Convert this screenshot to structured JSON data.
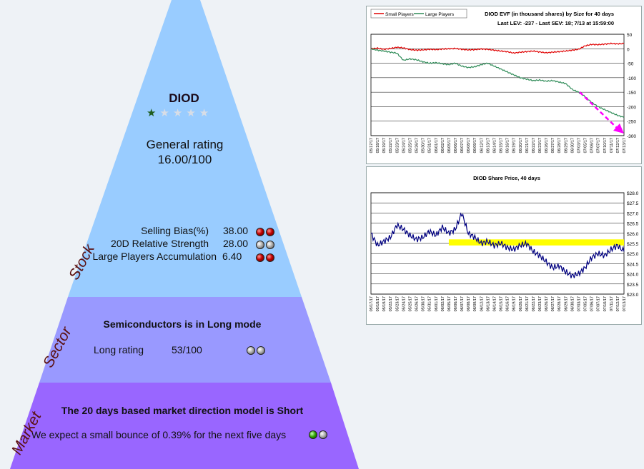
{
  "stock": {
    "ticker": "DIOD",
    "stars_filled": 1,
    "stars_total": 5,
    "general_rating_label": "General rating",
    "general_rating_value": "16.00/100",
    "metrics": [
      {
        "label": "Selling Bias(%)",
        "value": "38.00",
        "balls": [
          "red",
          "red"
        ]
      },
      {
        "label": "20D Relative Strength",
        "value": "28.00",
        "balls": [
          "gray",
          "gray"
        ]
      },
      {
        "label": "Large Players Accumulation",
        "value": "6.40",
        "balls": [
          "red",
          "red"
        ]
      }
    ]
  },
  "sector": {
    "headline": "Semiconductors is in Long mode",
    "rating_label": "Long rating",
    "rating_value": "53/100",
    "balls": [
      "gray",
      "gray"
    ]
  },
  "market": {
    "headline": "The 20 days based market direction model is Short",
    "expectation": "We expect a small bounce of 0.39% for the next five days",
    "balls": [
      "green",
      "gray"
    ]
  },
  "side_labels": {
    "stock": "Stock",
    "sector": "Sector",
    "market": "Market"
  },
  "colors": {
    "stock_tier": "#99ccff",
    "sector_tier": "#9999ff",
    "market_tier": "#9966ff",
    "small_players": "#e00000",
    "large_players": "#2e8b57",
    "share_price": "#000080",
    "highlight_band": "#ffff00",
    "trend_arrow": "#ff00ff"
  },
  "chart_data": [
    {
      "type": "line",
      "title": "DIOD EVF (in thousand shares) by Size for 40 days",
      "subtitle": "Last LEV: -237 - Last SEV: 18; 7/13 at 15:59:00",
      "legend": [
        "Small Players",
        "Large Players"
      ],
      "legend_position": "top-left",
      "ylim": [
        -300,
        50
      ],
      "yticks": [
        50,
        0,
        -50,
        -100,
        -150,
        -200,
        -250,
        -300
      ],
      "grid": true,
      "x": [
        "05/17/17",
        "05/18/17",
        "05/19/17",
        "05/22/17",
        "05/23/17",
        "05/24/17",
        "05/25/17",
        "05/26/17",
        "05/30/17",
        "05/31/17",
        "06/01/17",
        "06/02/17",
        "06/05/17",
        "06/06/17",
        "06/07/17",
        "06/08/17",
        "06/09/17",
        "06/12/17",
        "06/13/17",
        "06/14/17",
        "06/15/17",
        "06/16/17",
        "06/19/17",
        "06/20/17",
        "06/21/17",
        "06/22/17",
        "06/23/17",
        "06/26/17",
        "06/27/17",
        "06/28/17",
        "06/29/17",
        "06/30/17",
        "07/03/17",
        "07/05/17",
        "07/06/17",
        "07/07/17",
        "07/10/17",
        "07/11/17",
        "07/12/17",
        "07/13/17"
      ],
      "series": [
        {
          "name": "Small Players",
          "values": [
            0,
            2,
            -2,
            1,
            5,
            3,
            -3,
            -5,
            -4,
            -2,
            -3,
            -1,
            0,
            1,
            -2,
            -4,
            -3,
            -1,
            -2,
            -5,
            -8,
            -10,
            -15,
            -12,
            -10,
            -8,
            -11,
            -14,
            -12,
            -10,
            -8,
            -5,
            -2,
            10,
            15,
            14,
            16,
            18,
            17,
            18
          ]
        },
        {
          "name": "Large Players",
          "values": [
            0,
            -5,
            -8,
            -12,
            -15,
            -40,
            -35,
            -38,
            -45,
            -50,
            -48,
            -52,
            -55,
            -50,
            -60,
            -65,
            -62,
            -55,
            -50,
            -60,
            -70,
            -80,
            -90,
            -100,
            -105,
            -110,
            -108,
            -112,
            -110,
            -115,
            -120,
            -140,
            -150,
            -165,
            -185,
            -200,
            -210,
            -220,
            -230,
            -237
          ]
        }
      ]
    },
    {
      "type": "line",
      "title": "DIOD Share Price, 40 days",
      "ylim": [
        23.0,
        28.0
      ],
      "yticks": [
        "$28.0",
        "$27.5",
        "$27.0",
        "$26.5",
        "$26.0",
        "$25.5",
        "$25.0",
        "$24.5",
        "$24.0",
        "$23.5",
        "$23.0"
      ],
      "grid": true,
      "x": [
        "05/17/17",
        "05/18/17",
        "05/19/17",
        "05/22/17",
        "05/23/17",
        "05/24/17",
        "05/25/17",
        "05/26/17",
        "05/30/17",
        "05/31/17",
        "06/01/17",
        "06/02/17",
        "06/05/17",
        "06/06/17",
        "06/07/17",
        "06/08/17",
        "06/09/17",
        "06/12/17",
        "06/13/17",
        "06/14/17",
        "06/15/17",
        "06/16/17",
        "06/19/17",
        "06/20/17",
        "06/21/17",
        "06/22/17",
        "06/23/17",
        "06/26/17",
        "06/27/17",
        "06/28/17",
        "06/29/17",
        "06/30/17",
        "07/03/17",
        "07/05/17",
        "07/06/17",
        "07/07/17",
        "07/10/17",
        "07/11/17",
        "07/12/17",
        "07/13/17"
      ],
      "series": [
        {
          "name": "",
          "values": [
            26.0,
            25.4,
            25.6,
            25.8,
            26.4,
            26.2,
            25.9,
            25.7,
            25.8,
            26.1,
            25.9,
            26.3,
            26.0,
            26.2,
            27.0,
            26.0,
            25.8,
            25.5,
            25.6,
            25.4,
            25.5,
            25.3,
            25.2,
            25.4,
            25.5,
            25.1,
            24.9,
            24.6,
            24.3,
            24.4,
            24.1,
            23.9,
            24.0,
            24.3,
            24.8,
            25.0,
            24.9,
            25.2,
            25.4,
            25.1
          ]
        }
      ],
      "highlight_band": [
        25.4,
        25.7
      ]
    }
  ]
}
